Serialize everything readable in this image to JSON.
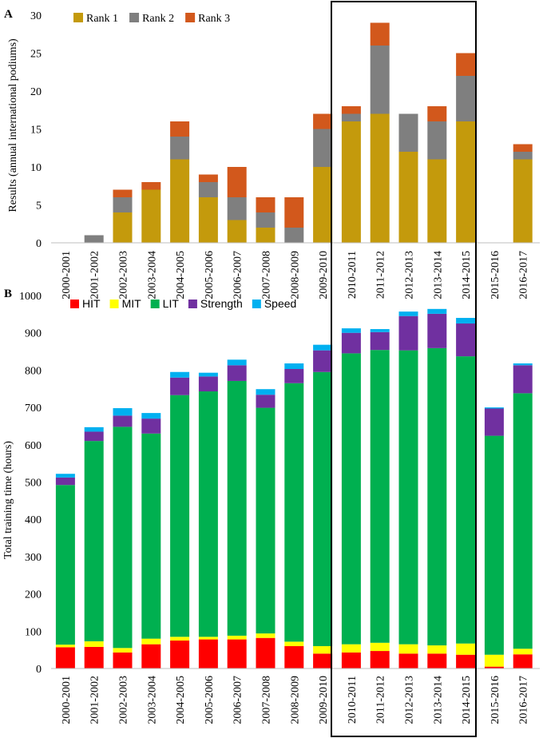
{
  "chart_data": [
    {
      "type": "bar",
      "panel_label": "A",
      "stacked": true,
      "categories": [
        "2000-2001",
        "2001-2002",
        "2002-2003",
        "2003-2004",
        "2004-2005",
        "2005-2006",
        "2006-2007",
        "2007-2008",
        "2008-2009",
        "2009-2010",
        "2010-2011",
        "2011-2012",
        "2012-2013",
        "2013-2014",
        "2014-2015",
        "2015-2016",
        "2016-2017"
      ],
      "series": [
        {
          "name": "Rank 1",
          "color": "#C49A0C",
          "values": [
            0,
            0,
            4,
            7,
            11,
            6,
            3,
            2,
            0,
            10,
            16,
            17,
            12,
            11,
            16,
            0,
            11
          ]
        },
        {
          "name": "Rank 2",
          "color": "#7F7F7F",
          "values": [
            0,
            1,
            2,
            0,
            3,
            2,
            3,
            2,
            2,
            5,
            1,
            9,
            5,
            5,
            6,
            0,
            1
          ]
        },
        {
          "name": "Rank 3",
          "color": "#D2581C",
          "values": [
            0,
            0,
            1,
            1,
            2,
            1,
            4,
            2,
            4,
            2,
            1,
            3,
            0,
            2,
            3,
            0,
            1
          ]
        }
      ],
      "ylabel": "Results (annual international podiums)",
      "ylim": [
        0,
        30
      ],
      "yticks": [
        "0",
        "5",
        "10",
        "15",
        "20",
        "25",
        "30"
      ],
      "grid": false,
      "legend_position": "top-left"
    },
    {
      "type": "bar",
      "panel_label": "B",
      "stacked": true,
      "categories": [
        "2000-2001",
        "2001-2002",
        "2002-2003",
        "2003-2004",
        "2004-2005",
        "2005-2006",
        "2006-2007",
        "2007-2008",
        "2008-2009",
        "2009-2010",
        "2010-2011",
        "2011-2012",
        "2012-2013",
        "2013-2014",
        "2014-2015",
        "2015-2016",
        "2016-2017"
      ],
      "series": [
        {
          "name": "HIT",
          "color": "#FF0000",
          "values": [
            57,
            58,
            43,
            65,
            75,
            78,
            78,
            82,
            60,
            40,
            43,
            47,
            40,
            40,
            37,
            5,
            38
          ]
        },
        {
          "name": "MIT",
          "color": "#FFFF00",
          "values": [
            7,
            15,
            12,
            15,
            10,
            7,
            10,
            12,
            12,
            20,
            22,
            22,
            25,
            22,
            30,
            32,
            15
          ]
        },
        {
          "name": "LIT",
          "color": "#00B050",
          "values": [
            428,
            537,
            593,
            550,
            648,
            658,
            683,
            605,
            693,
            735,
            780,
            785,
            788,
            797,
            770,
            587,
            685
          ]
        },
        {
          "name": "Strength",
          "color": "#7030A0",
          "values": [
            20,
            25,
            30,
            40,
            47,
            40,
            42,
            35,
            38,
            58,
            55,
            48,
            92,
            92,
            88,
            73,
            75
          ]
        },
        {
          "name": "Speed",
          "color": "#00B0F0",
          "values": [
            10,
            12,
            20,
            15,
            15,
            10,
            15,
            15,
            15,
            15,
            12,
            8,
            12,
            13,
            15,
            3,
            5
          ]
        }
      ],
      "ylabel": "Total training time (hours)",
      "ylim": [
        0,
        1000
      ],
      "yticks": [
        "0",
        "100",
        "200",
        "300",
        "400",
        "500",
        "600",
        "700",
        "800",
        "900",
        "1000"
      ],
      "grid": false,
      "legend_position": "top-left"
    }
  ],
  "highlight_box": {
    "from_category": "2010-2011",
    "to_category": "2014-2015"
  }
}
